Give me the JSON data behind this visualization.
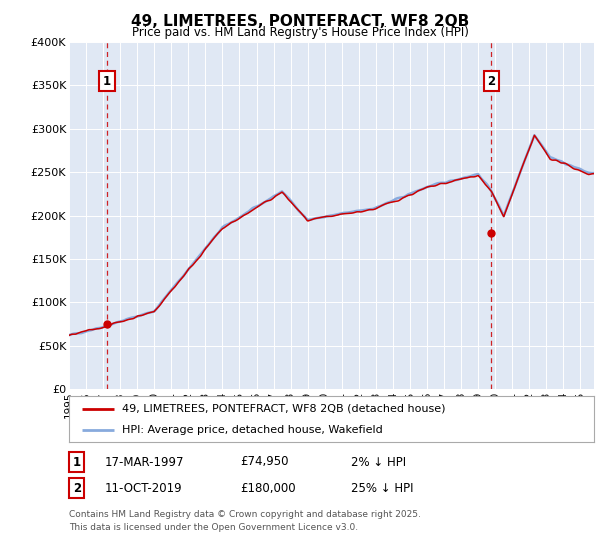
{
  "title": "49, LIMETREES, PONTEFRACT, WF8 2QB",
  "subtitle": "Price paid vs. HM Land Registry's House Price Index (HPI)",
  "ylim": [
    0,
    400000
  ],
  "xlim_start": 1995.0,
  "xlim_end": 2025.8,
  "ytick_vals": [
    0,
    50000,
    100000,
    150000,
    200000,
    250000,
    300000,
    350000,
    400000
  ],
  "ytick_labels": [
    "£0",
    "£50K",
    "£100K",
    "£150K",
    "£200K",
    "£250K",
    "£300K",
    "£350K",
    "£400K"
  ],
  "transaction1": {
    "date": "17-MAR-1997",
    "price": 74950,
    "label": "1",
    "year": 1997.21,
    "pct": "2% ↓ HPI"
  },
  "transaction2": {
    "date": "11-OCT-2019",
    "price": 180000,
    "label": "2",
    "year": 2019.78,
    "pct": "25% ↓ HPI"
  },
  "legend_line1": "49, LIMETREES, PONTEFRACT, WF8 2QB (detached house)",
  "legend_line2": "HPI: Average price, detached house, Wakefield",
  "footer_line1": "Contains HM Land Registry data © Crown copyright and database right 2025.",
  "footer_line2": "This data is licensed under the Open Government Licence v3.0.",
  "line_color_red": "#cc0000",
  "line_color_blue": "#88aadd",
  "plot_bg": "#e0e8f4",
  "marker_color": "#cc0000"
}
